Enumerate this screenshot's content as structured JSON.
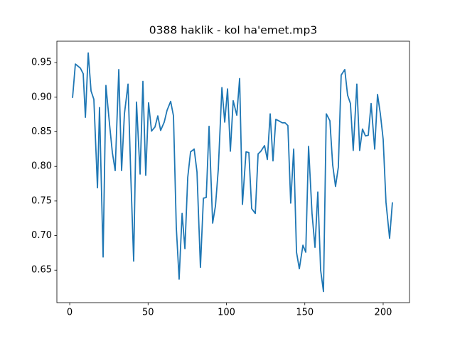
{
  "chart_data": {
    "type": "line",
    "title": "0388 haklik - kol ha'emet.mp3",
    "color": "#1f77b4",
    "x": [
      1.8,
      3.6,
      6.8,
      8.6,
      10,
      11.8,
      13.6,
      15.4,
      17.7,
      19,
      21.3,
      23.1,
      25.4,
      27.2,
      29,
      31.3,
      33.1,
      34.9,
      37.2,
      39,
      40.8,
      42.6,
      44.9,
      46.7,
      48.5,
      50.3,
      52.2,
      54.4,
      56.2,
      58,
      60.3,
      62.1,
      64.4,
      66.2,
      68,
      69.8,
      71.7,
      73.5,
      75.3,
      77.1,
      79.4,
      81.2,
      83.4,
      85.3,
      87.1,
      88.9,
      91.2,
      93,
      94.8,
      97.1,
      98.9,
      100.7,
      102.5,
      104.3,
      106.6,
      108.4,
      110.2,
      112.5,
      114.3,
      116.1,
      118.4,
      120.2,
      122,
      124.3,
      126.1,
      127.9,
      129.7,
      131.5,
      133.3,
      135.6,
      137.4,
      139.2,
      141,
      142.9,
      144.7,
      146.5,
      148.8,
      150.6,
      152.4,
      154.6,
      156.5,
      158.3,
      160.1,
      161.9,
      163.7,
      166,
      167.8,
      169.6,
      171.4,
      173.2,
      175.5,
      177.3,
      179.1,
      180.9,
      183.2,
      185,
      186.8,
      188.7,
      190.5,
      192.3,
      194.6,
      196.4,
      198.2,
      200,
      201.8,
      204.1,
      205.9
    ],
    "values": [
      0.899,
      0.948,
      0.942,
      0.934,
      0.871,
      0.964,
      0.909,
      0.897,
      0.769,
      0.885,
      0.669,
      0.917,
      0.861,
      0.82,
      0.794,
      0.94,
      0.794,
      0.876,
      0.919,
      0.784,
      0.663,
      0.893,
      0.789,
      0.923,
      0.787,
      0.892,
      0.851,
      0.857,
      0.873,
      0.852,
      0.864,
      0.881,
      0.894,
      0.873,
      0.712,
      0.637,
      0.732,
      0.681,
      0.784,
      0.821,
      0.825,
      0.792,
      0.654,
      0.754,
      0.755,
      0.858,
      0.718,
      0.743,
      0.796,
      0.914,
      0.864,
      0.912,
      0.822,
      0.895,
      0.874,
      0.927,
      0.745,
      0.821,
      0.82,
      0.739,
      0.732,
      0.818,
      0.822,
      0.83,
      0.81,
      0.876,
      0.808,
      0.868,
      0.866,
      0.863,
      0.863,
      0.859,
      0.747,
      0.825,
      0.676,
      0.652,
      0.686,
      0.676,
      0.829,
      0.732,
      0.683,
      0.763,
      0.65,
      0.619,
      0.876,
      0.866,
      0.802,
      0.771,
      0.799,
      0.932,
      0.94,
      0.903,
      0.891,
      0.823,
      0.919,
      0.823,
      0.854,
      0.844,
      0.845,
      0.891,
      0.825,
      0.904,
      0.876,
      0.839,
      0.748,
      0.696,
      0.748
    ],
    "xlim": [
      -8.2,
      216.8
    ],
    "ylim": [
      0.603,
      0.981
    ],
    "xticks": [
      0,
      50,
      100,
      150,
      200
    ],
    "yticks": [
      0.65,
      {
        "value": 0.7,
        "label": "0.70"
      },
      0.75,
      {
        "value": 0.8,
        "label": "0.80"
      },
      0.85,
      {
        "value": 0.9,
        "label": "0.90"
      },
      0.95
    ]
  }
}
